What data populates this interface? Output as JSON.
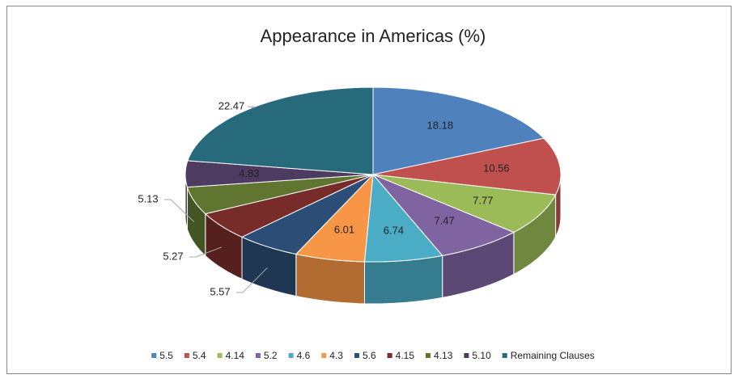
{
  "chart_data": {
    "type": "pie",
    "title": "Appearance in Americas (%)",
    "categories": [
      "5.5",
      "5.4",
      "4.14",
      "5.2",
      "4.6",
      "4.3",
      "5.6",
      "4.15",
      "4.13",
      "5.10",
      "Remaining Clauses"
    ],
    "values": [
      18.18,
      10.56,
      7.77,
      7.47,
      6.74,
      6.01,
      5.57,
      5.27,
      5.13,
      4.83,
      22.47
    ],
    "colors": [
      "#4f81bd",
      "#c0504d",
      "#9bbb59",
      "#8064a2",
      "#4bacc6",
      "#f79646",
      "#2c4d75",
      "#772c2a",
      "#5f7530",
      "#4d3b62",
      "#276a7c"
    ],
    "legend": "bottom"
  }
}
